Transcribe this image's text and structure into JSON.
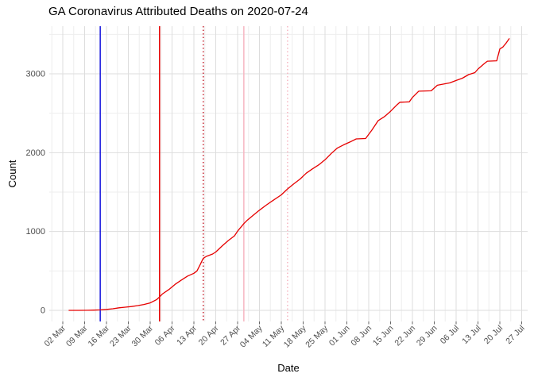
{
  "chart_data": {
    "type": "line",
    "title": "GA Coronavirus Attributed Deaths on 2020-07-24",
    "xlabel": "Date",
    "ylabel": "Count",
    "x_ticks": [
      {
        "date": "2020-03-02",
        "label": "02 Mar"
      },
      {
        "date": "2020-03-09",
        "label": "09 Mar"
      },
      {
        "date": "2020-03-16",
        "label": "16 Mar"
      },
      {
        "date": "2020-03-23",
        "label": "23 Mar"
      },
      {
        "date": "2020-03-30",
        "label": "30 Mar"
      },
      {
        "date": "2020-04-06",
        "label": "06 Apr"
      },
      {
        "date": "2020-04-13",
        "label": "13 Apr"
      },
      {
        "date": "2020-04-20",
        "label": "20 Apr"
      },
      {
        "date": "2020-04-27",
        "label": "27 Apr"
      },
      {
        "date": "2020-05-04",
        "label": "04 May"
      },
      {
        "date": "2020-05-11",
        "label": "11 May"
      },
      {
        "date": "2020-05-18",
        "label": "18 May"
      },
      {
        "date": "2020-05-25",
        "label": "25 May"
      },
      {
        "date": "2020-06-01",
        "label": "01 Jun"
      },
      {
        "date": "2020-06-08",
        "label": "08 Jun"
      },
      {
        "date": "2020-06-15",
        "label": "15 Jun"
      },
      {
        "date": "2020-06-22",
        "label": "22 Jun"
      },
      {
        "date": "2020-06-29",
        "label": "29 Jun"
      },
      {
        "date": "2020-07-06",
        "label": "06 Jul"
      },
      {
        "date": "2020-07-13",
        "label": "13 Jul"
      },
      {
        "date": "2020-07-20",
        "label": "20 Jul"
      },
      {
        "date": "2020-07-27",
        "label": "27 Jul"
      }
    ],
    "y_ticks": [
      0,
      1000,
      2000,
      3000
    ],
    "y_minor_ticks": [
      500,
      1500,
      2500,
      3500
    ],
    "ylim": [
      -145,
      3600
    ],
    "x_range": [
      "2020-02-27",
      "2020-07-29"
    ],
    "grid": "major+minor",
    "legend": "none",
    "colors": {
      "line": "#e60000",
      "grid_major": "#dddddd",
      "grid_minor": "#eeeeee",
      "tick_mark": "#666666",
      "tick_label": "#4d4d4d",
      "title_text": "#000000"
    },
    "vlines": [
      {
        "date": "2020-03-14",
        "color": "#1414dc",
        "style": "solid"
      },
      {
        "date": "2020-04-02",
        "color": "#e60000",
        "style": "solid"
      },
      {
        "date": "2020-04-16",
        "color": "#c4222e",
        "style": "dotted"
      },
      {
        "date": "2020-04-29",
        "color": "#f6b6c2",
        "style": "solid"
      },
      {
        "date": "2020-05-13",
        "color": "#f6b6c2",
        "style": "dotted"
      }
    ],
    "series": [
      {
        "name": "cumulative-deaths",
        "color": "#e60000",
        "points": [
          [
            "2020-03-04",
            0
          ],
          [
            "2020-03-07",
            0
          ],
          [
            "2020-03-10",
            1
          ],
          [
            "2020-03-12",
            3
          ],
          [
            "2020-03-14",
            6
          ],
          [
            "2020-03-16",
            12
          ],
          [
            "2020-03-18",
            20
          ],
          [
            "2020-03-20",
            32
          ],
          [
            "2020-03-22",
            40
          ],
          [
            "2020-03-24",
            48
          ],
          [
            "2020-03-26",
            60
          ],
          [
            "2020-03-28",
            75
          ],
          [
            "2020-03-30",
            95
          ],
          [
            "2020-04-01",
            135
          ],
          [
            "2020-04-02",
            170
          ],
          [
            "2020-04-03",
            210
          ],
          [
            "2020-04-05",
            265
          ],
          [
            "2020-04-07",
            330
          ],
          [
            "2020-04-09",
            385
          ],
          [
            "2020-04-11",
            435
          ],
          [
            "2020-04-13",
            470
          ],
          [
            "2020-04-14",
            500
          ],
          [
            "2020-04-15",
            580
          ],
          [
            "2020-04-16",
            660
          ],
          [
            "2020-04-17",
            685
          ],
          [
            "2020-04-19",
            715
          ],
          [
            "2020-04-20",
            740
          ],
          [
            "2020-04-22",
            815
          ],
          [
            "2020-04-24",
            885
          ],
          [
            "2020-04-26",
            945
          ],
          [
            "2020-04-27",
            1005
          ],
          [
            "2020-04-29",
            1100
          ],
          [
            "2020-04-30",
            1140
          ],
          [
            "2020-05-02",
            1205
          ],
          [
            "2020-05-04",
            1270
          ],
          [
            "2020-05-06",
            1330
          ],
          [
            "2020-05-08",
            1385
          ],
          [
            "2020-05-11",
            1465
          ],
          [
            "2020-05-13",
            1540
          ],
          [
            "2020-05-15",
            1605
          ],
          [
            "2020-05-17",
            1665
          ],
          [
            "2020-05-19",
            1740
          ],
          [
            "2020-05-21",
            1795
          ],
          [
            "2020-05-23",
            1845
          ],
          [
            "2020-05-25",
            1910
          ],
          [
            "2020-05-27",
            1990
          ],
          [
            "2020-05-29",
            2060
          ],
          [
            "2020-05-31",
            2100
          ],
          [
            "2020-06-02",
            2135
          ],
          [
            "2020-06-04",
            2175
          ],
          [
            "2020-06-07",
            2180
          ],
          [
            "2020-06-09",
            2285
          ],
          [
            "2020-06-11",
            2405
          ],
          [
            "2020-06-13",
            2455
          ],
          [
            "2020-06-15",
            2525
          ],
          [
            "2020-06-17",
            2605
          ],
          [
            "2020-06-18",
            2640
          ],
          [
            "2020-06-21",
            2645
          ],
          [
            "2020-06-22",
            2700
          ],
          [
            "2020-06-24",
            2780
          ],
          [
            "2020-06-28",
            2785
          ],
          [
            "2020-06-30",
            2855
          ],
          [
            "2020-07-02",
            2870
          ],
          [
            "2020-07-04",
            2885
          ],
          [
            "2020-07-06",
            2915
          ],
          [
            "2020-07-08",
            2945
          ],
          [
            "2020-07-10",
            2990
          ],
          [
            "2020-07-12",
            3015
          ],
          [
            "2020-07-13",
            3060
          ],
          [
            "2020-07-14",
            3095
          ],
          [
            "2020-07-15",
            3130
          ],
          [
            "2020-07-16",
            3160
          ],
          [
            "2020-07-19",
            3165
          ],
          [
            "2020-07-20",
            3315
          ],
          [
            "2020-07-21",
            3340
          ],
          [
            "2020-07-22",
            3390
          ],
          [
            "2020-07-23",
            3445
          ]
        ]
      }
    ]
  }
}
